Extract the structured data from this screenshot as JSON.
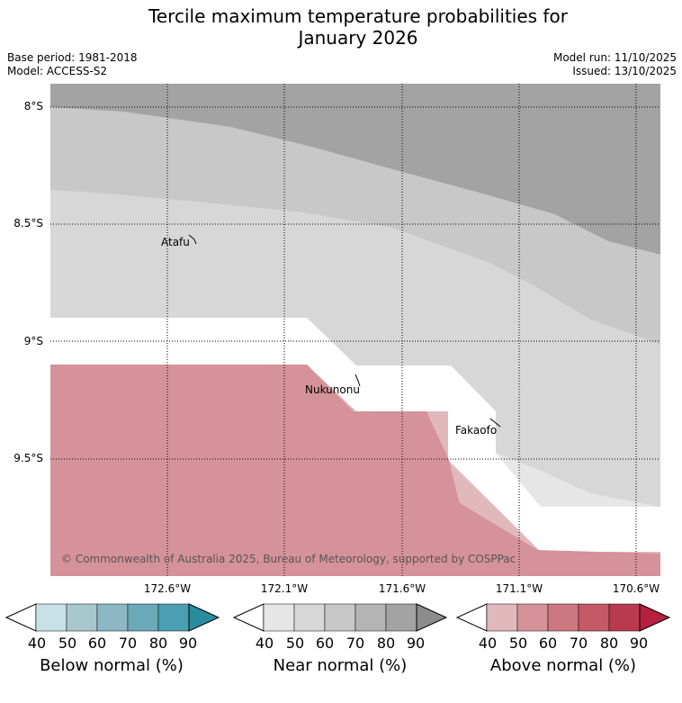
{
  "title": "Tercile maximum temperature probabilities for January 2026",
  "title_line1": "Tercile maximum temperature probabilities for",
  "title_line2": "January 2026",
  "base_period": "Base period: 1981-2018",
  "model": "Model: ACCESS-S2",
  "model_run": "Model run: 11/10/2025",
  "issued": "Issued: 13/10/2025",
  "lat_labels": [
    "8°S",
    "8.5°S",
    "9°S",
    "9.5°S"
  ],
  "lon_labels": [
    "172.6°W",
    "172.1°W",
    "171.6°W",
    "171.1°W",
    "170.6°W"
  ],
  "places": [
    "Atafu",
    "Nukunonu",
    "Fakaofo"
  ],
  "credit": "© Commonwealth of Australia 2025, Bureau of Meteorology, supported by COSPPac",
  "colorbars": [
    {
      "label": "Below normal (%)",
      "ticks": [
        "40",
        "50",
        "60",
        "70",
        "80",
        "90"
      ],
      "colors": [
        "#ffffff",
        "#c8e1e6",
        "#a8c8cd",
        "#8bb8c2",
        "#6aa9b7",
        "#4aa0b2",
        "#2a8c9f"
      ]
    },
    {
      "label": "Near normal (%)",
      "ticks": [
        "40",
        "50",
        "60",
        "70",
        "80",
        "90"
      ],
      "colors": [
        "#ffffff",
        "#e6e6e6",
        "#d7d7d7",
        "#c8c8c8",
        "#b4b4b4",
        "#a3a3a3",
        "#8c8c8c"
      ]
    },
    {
      "label": "Above normal (%)",
      "ticks": [
        "40",
        "50",
        "60",
        "70",
        "80",
        "90"
      ],
      "colors": [
        "#ffffff",
        "#e1b9bd",
        "#d69299",
        "#cd7880",
        "#c45a68",
        "#b93a4e",
        "#b82040"
      ]
    }
  ]
}
